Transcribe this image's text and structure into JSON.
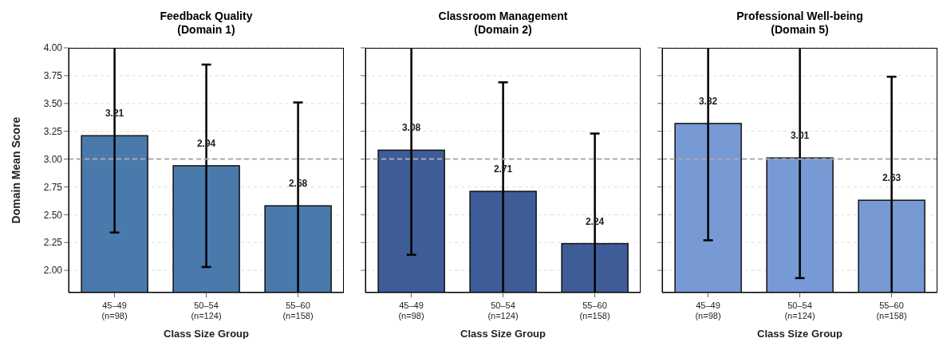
{
  "chart_data": [
    {
      "type": "bar",
      "title": "Feedback Quality\n(Domain 1)",
      "xlabel": "Class Size Group",
      "ylabel": "Domain Mean Score",
      "categories": [
        "45–49\n(n=98)",
        "50–54\n(n=124)",
        "55–60\n(n=158)"
      ],
      "values": [
        3.21,
        2.94,
        2.58
      ],
      "errors": [
        [
          2.34,
          4.0
        ],
        0.91,
        [
          1.8,
          3.51
        ]
      ],
      "color": "#4a7aab",
      "ylim": [
        1.8,
        4.0
      ],
      "yticks": [
        {
          "value": 2,
          "label": "2.00"
        },
        {
          "value": 2.25,
          "label": "2.25"
        },
        {
          "value": 2.5,
          "label": "2.50"
        },
        {
          "value": 2.75,
          "label": "2.75"
        },
        {
          "value": 3,
          "label": "3.00"
        },
        {
          "value": 3.25,
          "label": "3.25"
        },
        {
          "value": 3.5,
          "label": "3.50"
        },
        {
          "value": 3.75,
          "label": "3.75"
        },
        {
          "value": 4,
          "label": "4.00"
        }
      ],
      "grid": "y",
      "data_labels": true,
      "ref_lines": [
        {
          "axis": "y",
          "value": 3.0,
          "label": null,
          "color": "#aaaaaa",
          "line_style": "dashed"
        }
      ]
    },
    {
      "type": "bar",
      "title": "Classroom Management\n(Domain 2)",
      "xlabel": "Class Size Group",
      "categories": [
        "45–49\n(n=98)",
        "50–54\n(n=124)",
        "55–60\n(n=158)"
      ],
      "values": [
        3.08,
        2.71,
        2.24
      ],
      "errors": [
        [
          2.14,
          4.0
        ],
        [
          1.8,
          3.69
        ],
        [
          1.8,
          3.23
        ]
      ],
      "color": "#3e5c98",
      "ylim": [
        1.8,
        4.0
      ],
      "yticks": [
        2,
        2.25,
        2.5,
        2.75,
        3,
        3.25,
        3.5,
        3.75,
        4
      ],
      "grid": "y",
      "data_labels": true,
      "tick_labels": "x",
      "ref_lines": [
        {
          "axis": "y",
          "value": 3.0,
          "label": null,
          "color": "#aaaaaa",
          "line_style": "dashed"
        }
      ]
    },
    {
      "type": "bar",
      "title": "Professional Well-being\n(Domain 5)",
      "xlabel": "Class Size Group",
      "categories": [
        "45–49\n(n=98)",
        "50–54\n(n=124)",
        "55–60\n(n=158)"
      ],
      "values": [
        3.32,
        3.01,
        2.63
      ],
      "errors": [
        [
          2.27,
          4.0
        ],
        [
          1.93,
          4.0
        ],
        [
          1.8,
          3.74
        ]
      ],
      "color": "#7799d4",
      "ylim": [
        1.8,
        4.0
      ],
      "yticks": [
        2,
        2.25,
        2.5,
        2.75,
        3,
        3.25,
        3.5,
        3.75,
        4
      ],
      "grid": "y",
      "data_labels": true,
      "tick_labels": "x",
      "ref_lines": [
        {
          "axis": "y",
          "value": 3.0,
          "label": null,
          "color": "#aaaaaa",
          "line_style": "dashed"
        }
      ]
    }
  ]
}
